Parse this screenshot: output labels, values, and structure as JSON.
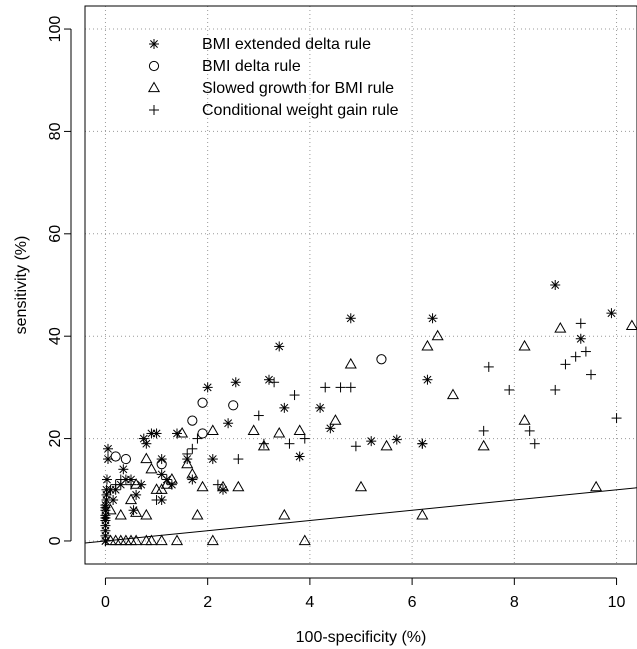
{
  "chart_data": {
    "type": "scatter",
    "title": "",
    "xlabel": "100-specificity (%)",
    "ylabel": "sensitivity (%)",
    "xlim": [
      -0.4,
      10.4
    ],
    "ylim": [
      -4.5,
      104.5
    ],
    "xticks": [
      "0",
      "2",
      "4",
      "6",
      "8",
      "10"
    ],
    "yticks": [
      "0",
      "20",
      "40",
      "60",
      "80",
      "100"
    ],
    "grid": "dotted",
    "legend_position": "top-left",
    "series": [
      {
        "name": "BMI extended delta rule",
        "marker": "asterisk",
        "points": [
          [
            0,
            0
          ],
          [
            0,
            0
          ],
          [
            0,
            0
          ],
          [
            0,
            1
          ],
          [
            0,
            2
          ],
          [
            0,
            3
          ],
          [
            0,
            4
          ],
          [
            0,
            4.5
          ],
          [
            0,
            5
          ],
          [
            0,
            6
          ],
          [
            0,
            6.5
          ],
          [
            0,
            7
          ],
          [
            0.02,
            8
          ],
          [
            0.02,
            9
          ],
          [
            0.02,
            10
          ],
          [
            0.03,
            12
          ],
          [
            0.05,
            16
          ],
          [
            0.05,
            18
          ],
          [
            0.1,
            10
          ],
          [
            0.15,
            8
          ],
          [
            0.2,
            10
          ],
          [
            0.3,
            11
          ],
          [
            0.35,
            14
          ],
          [
            0.4,
            12
          ],
          [
            0.5,
            12
          ],
          [
            0.55,
            6
          ],
          [
            0.6,
            9
          ],
          [
            0.7,
            11
          ],
          [
            0.75,
            20
          ],
          [
            0.8,
            19
          ],
          [
            0.9,
            21
          ],
          [
            1.0,
            21
          ],
          [
            1.1,
            8
          ],
          [
            1.1,
            13
          ],
          [
            1.1,
            16
          ],
          [
            1.2,
            12
          ],
          [
            1.3,
            11
          ],
          [
            1.4,
            21
          ],
          [
            1.6,
            16
          ],
          [
            1.7,
            12
          ],
          [
            2.0,
            30
          ],
          [
            2.1,
            16
          ],
          [
            2.3,
            10
          ],
          [
            2.4,
            23
          ],
          [
            2.55,
            31
          ],
          [
            3.2,
            31.5
          ],
          [
            3.4,
            38
          ],
          [
            3.5,
            26
          ],
          [
            3.8,
            16.5
          ],
          [
            4.2,
            26
          ],
          [
            4.4,
            22
          ],
          [
            4.8,
            43.5
          ],
          [
            5.2,
            19.5
          ],
          [
            5.7,
            19.8
          ],
          [
            6.2,
            19
          ],
          [
            6.3,
            31.5
          ],
          [
            6.4,
            43.5
          ],
          [
            8.8,
            50
          ],
          [
            9.3,
            39.5
          ],
          [
            9.9,
            44.5
          ]
        ]
      },
      {
        "name": "BMI delta rule",
        "marker": "circle",
        "points": [
          [
            0.2,
            16.5
          ],
          [
            0.4,
            16
          ],
          [
            1.1,
            15
          ],
          [
            1.7,
            23.5
          ],
          [
            1.9,
            21
          ],
          [
            1.9,
            27
          ],
          [
            2.5,
            26.5
          ],
          [
            5.4,
            35.5
          ]
        ]
      },
      {
        "name": "Slowed growth for BMI rule",
        "marker": "triangle",
        "points": [
          [
            0.1,
            0
          ],
          [
            0.2,
            0
          ],
          [
            0.3,
            0
          ],
          [
            0.4,
            0
          ],
          [
            0.5,
            0
          ],
          [
            0.6,
            0
          ],
          [
            0.8,
            0
          ],
          [
            0.9,
            0
          ],
          [
            1.1,
            0
          ],
          [
            1.4,
            0
          ],
          [
            2.1,
            0
          ],
          [
            3.9,
            0
          ],
          [
            0.1,
            6
          ],
          [
            0.3,
            5
          ],
          [
            0.5,
            8
          ],
          [
            0.6,
            5.5
          ],
          [
            0.8,
            5
          ],
          [
            0.6,
            11
          ],
          [
            0.8,
            16
          ],
          [
            0.9,
            14
          ],
          [
            1.0,
            10
          ],
          [
            1.1,
            10
          ],
          [
            1.2,
            11
          ],
          [
            1.3,
            12
          ],
          [
            1.5,
            21
          ],
          [
            1.6,
            15
          ],
          [
            1.7,
            13
          ],
          [
            1.8,
            5
          ],
          [
            1.9,
            10.5
          ],
          [
            2.1,
            21.5
          ],
          [
            2.3,
            10.5
          ],
          [
            2.6,
            10.5
          ],
          [
            2.9,
            21.5
          ],
          [
            3.1,
            18.5
          ],
          [
            3.4,
            21
          ],
          [
            3.5,
            5
          ],
          [
            3.8,
            21.5
          ],
          [
            4.5,
            23.5
          ],
          [
            4.8,
            34.5
          ],
          [
            5.0,
            10.5
          ],
          [
            5.5,
            18.5
          ],
          [
            6.2,
            5
          ],
          [
            6.3,
            38
          ],
          [
            6.5,
            40
          ],
          [
            6.8,
            28.5
          ],
          [
            7.4,
            18.5
          ],
          [
            8.2,
            23.5
          ],
          [
            8.2,
            38
          ],
          [
            8.9,
            41.5
          ],
          [
            9.6,
            10.5
          ],
          [
            10.3,
            42
          ]
        ]
      },
      {
        "name": "Conditional weight gain rule",
        "marker": "plus",
        "points": [
          [
            0.2,
            11
          ],
          [
            0.3,
            12
          ],
          [
            0.5,
            11
          ],
          [
            1.0,
            8
          ],
          [
            1.6,
            17
          ],
          [
            1.7,
            18
          ],
          [
            1.8,
            20
          ],
          [
            2.2,
            11
          ],
          [
            2.6,
            16
          ],
          [
            3.0,
            24.5
          ],
          [
            3.1,
            19
          ],
          [
            3.3,
            31
          ],
          [
            3.6,
            19
          ],
          [
            3.7,
            28.5
          ],
          [
            3.9,
            20
          ],
          [
            4.3,
            30
          ],
          [
            4.6,
            30
          ],
          [
            4.8,
            30
          ],
          [
            4.9,
            18.5
          ],
          [
            6.2,
            19
          ],
          [
            7.4,
            21.5
          ],
          [
            7.5,
            34
          ],
          [
            7.9,
            29.5
          ],
          [
            8.3,
            21.5
          ],
          [
            8.4,
            19
          ],
          [
            8.8,
            29.5
          ],
          [
            9.0,
            34.5
          ],
          [
            9.2,
            36
          ],
          [
            9.3,
            42.5
          ],
          [
            9.4,
            37
          ],
          [
            9.5,
            32.5
          ],
          [
            10.0,
            24
          ]
        ]
      }
    ],
    "lines": [
      {
        "name": "chance line",
        "x": [
          -0.4,
          10.4
        ],
        "y": [
          -0.4,
          10.4
        ]
      }
    ]
  }
}
